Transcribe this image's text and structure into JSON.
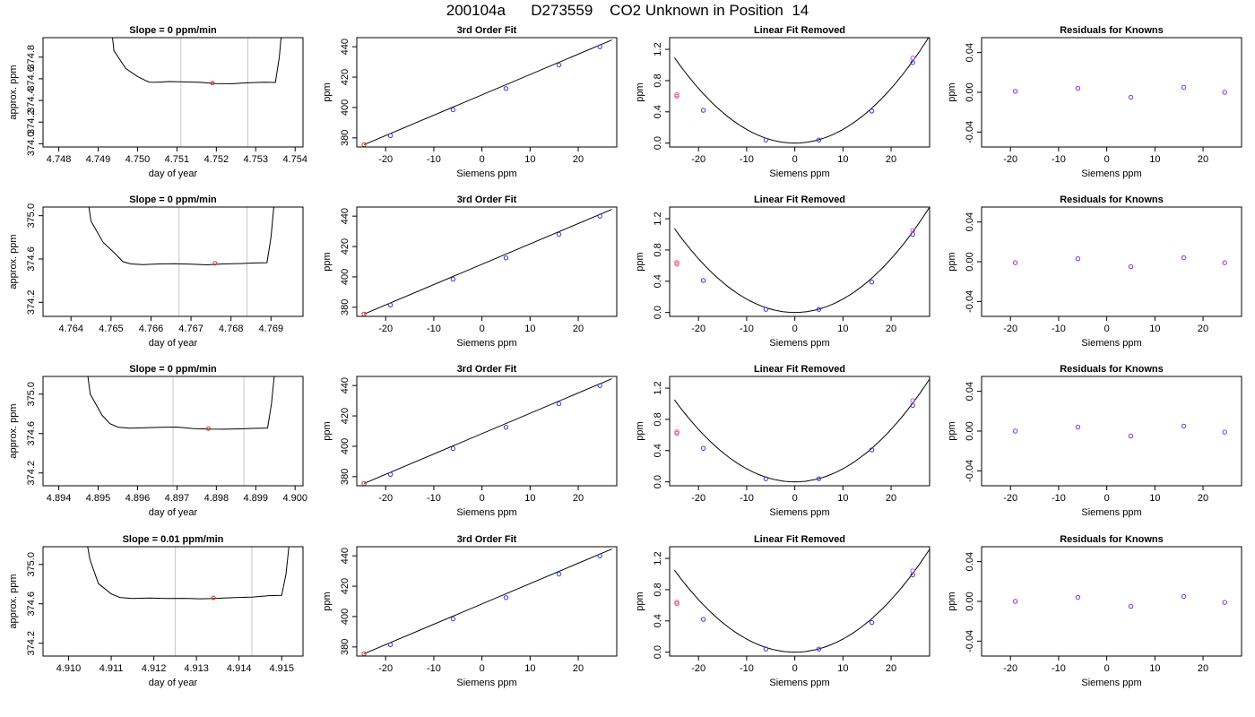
{
  "figure": {
    "title": "200104a      D273559    CO2 Unknown in Position  14"
  },
  "chart_data": [
    {
      "type": "line",
      "title": "Slope =  0  ppm/min",
      "xlabel": "day of year",
      "ylabel": "approx. ppm",
      "xlim": [
        4.7476,
        4.7542
      ],
      "ylim": [
        373.97,
        374.98
      ],
      "xticks": [
        "4.748",
        "4.749",
        "4.750",
        "4.751",
        "4.752",
        "4.753",
        "4.754"
      ],
      "yticks": [
        "374.0",
        "374.2",
        "374.4",
        "374.6",
        "374.8"
      ],
      "vlines": [
        4.7511,
        4.7528
      ],
      "trace": {
        "x": [
          4.7493,
          4.7494,
          4.7497,
          4.75,
          4.7502,
          4.7503,
          4.7505,
          4.7508,
          4.7512,
          4.7516,
          4.752,
          4.7524,
          4.7528,
          4.7532,
          4.7535,
          4.7536,
          4.7537
        ],
        "y": [
          375.2,
          374.86,
          374.69,
          374.62,
          374.59,
          374.575,
          374.57,
          374.57,
          374.565,
          374.565,
          374.56,
          374.56,
          374.565,
          374.565,
          374.56,
          374.8,
          375.2
        ]
      },
      "point": {
        "x": 4.7519,
        "y": 374.56
      }
    },
    {
      "type": "scatter",
      "title": "3rd Order Fit",
      "xlabel": "Siemens ppm",
      "ylabel": "ppm",
      "xlim": [
        -26,
        28
      ],
      "ylim": [
        374,
        446
      ],
      "xticks": [
        -20,
        -10,
        0,
        10,
        20
      ],
      "yticks": [
        380,
        400,
        420,
        440
      ],
      "points": {
        "x": [
          -24.5,
          -19,
          -6,
          5,
          16,
          24.5
        ],
        "y": [
          375.5,
          381.5,
          398.5,
          412.5,
          428,
          440
        ]
      },
      "fit_line": {
        "x": [
          -24.5,
          27
        ],
        "y": [
          375.5,
          444.5
        ]
      }
    },
    {
      "type": "scatter",
      "title": "Linear Fit Removed",
      "xlabel": "Siemens ppm",
      "ylabel": "ppm",
      "xlim": [
        -26,
        28
      ],
      "ylim": [
        -0.05,
        1.35
      ],
      "xticks": [
        -20,
        -10,
        0,
        10,
        20
      ],
      "yticks": [
        "0.0",
        "0.4",
        "0.8",
        "1.2"
      ],
      "points": {
        "x": [
          -24.5,
          -19,
          -6,
          5,
          16,
          24.5
        ],
        "y": [
          0.62,
          0.42,
          0.04,
          0.04,
          0.41,
          1.03
        ]
      },
      "points_alt": {
        "x": [
          -24.5,
          24.5
        ],
        "y": [
          0.6,
          1.09
        ]
      },
      "fit_curve": {
        "a": 0.00175
      }
    },
    {
      "type": "scatter",
      "title": "Residuals for Knowns",
      "xlabel": "Siemens ppm",
      "ylabel": "ppm",
      "xlim": [
        -26,
        28
      ],
      "ylim": [
        -0.055,
        0.055
      ],
      "xticks": [
        -20,
        -10,
        0,
        10,
        20
      ],
      "yticks": [
        "-0.04",
        "0.00",
        "0.04"
      ],
      "points": {
        "x": [
          -19,
          -6,
          5,
          16,
          24.5
        ],
        "y": [
          0.001,
          0.004,
          -0.005,
          0.005,
          0.0
        ]
      }
    },
    {
      "type": "line",
      "title": "Slope =  0  ppm/min",
      "xlabel": "day of year",
      "ylabel": "approx. ppm",
      "xlim": [
        4.7633,
        4.7698
      ],
      "ylim": [
        374.07,
        375.08
      ],
      "xticks": [
        "4.764",
        "4.765",
        "4.766",
        "4.767",
        "4.768",
        "4.769"
      ],
      "yticks": [
        "374.2",
        "374.6",
        "375.0"
      ],
      "vlines": [
        4.7667,
        4.7684
      ],
      "trace": {
        "x": [
          4.7644,
          4.7645,
          4.7648,
          4.7651,
          4.7653,
          4.7655,
          4.7658,
          4.7662,
          4.7666,
          4.767,
          4.7674,
          4.7678,
          4.7682,
          4.7686,
          4.7689,
          4.769,
          4.7691
        ],
        "y": [
          375.2,
          374.95,
          374.75,
          374.65,
          374.58,
          374.56,
          374.55,
          374.55,
          374.55,
          374.55,
          374.55,
          374.56,
          374.56,
          374.56,
          374.56,
          374.8,
          375.2
        ]
      },
      "point": {
        "x": 4.7676,
        "y": 374.56
      }
    },
    {
      "type": "scatter",
      "title": "3rd Order Fit",
      "xlabel": "Siemens ppm",
      "ylabel": "ppm",
      "xlim": [
        -26,
        28
      ],
      "ylim": [
        374,
        446
      ],
      "xticks": [
        -20,
        -10,
        0,
        10,
        20
      ],
      "yticks": [
        380,
        400,
        420,
        440
      ],
      "points": {
        "x": [
          -24.5,
          -19,
          -6,
          5,
          16,
          24.5
        ],
        "y": [
          375.5,
          381.5,
          398.5,
          412.5,
          428,
          440
        ]
      },
      "fit_line": {
        "x": [
          -24.5,
          27
        ],
        "y": [
          375.5,
          444.5
        ]
      }
    },
    {
      "type": "scatter",
      "title": "Linear Fit Removed",
      "xlabel": "Siemens ppm",
      "ylabel": "ppm",
      "xlim": [
        -26,
        28
      ],
      "ylim": [
        -0.05,
        1.35
      ],
      "xticks": [
        -20,
        -10,
        0,
        10,
        20
      ],
      "yticks": [
        "0.0",
        "0.4",
        "0.8",
        "1.2"
      ],
      "points": {
        "x": [
          -24.5,
          -19,
          -6,
          5,
          16,
          24.5
        ],
        "y": [
          0.64,
          0.41,
          0.04,
          0.04,
          0.39,
          1.0
        ]
      },
      "points_alt": {
        "x": [
          -24.5,
          24.5
        ],
        "y": [
          0.62,
          1.05
        ]
      },
      "fit_curve": {
        "a": 0.00172
      }
    },
    {
      "type": "scatter",
      "title": "Residuals for Knowns",
      "xlabel": "Siemens ppm",
      "ylabel": "ppm",
      "xlim": [
        -26,
        28
      ],
      "ylim": [
        -0.055,
        0.055
      ],
      "xticks": [
        -20,
        -10,
        0,
        10,
        20
      ],
      "yticks": [
        "-0.04",
        "0.00",
        "0.04"
      ],
      "points": {
        "x": [
          -19,
          -6,
          5,
          16,
          24.5
        ],
        "y": [
          -0.001,
          0.003,
          -0.005,
          0.004,
          -0.001
        ]
      }
    },
    {
      "type": "line",
      "title": "Slope =  0  ppm/min",
      "xlabel": "day of year",
      "ylabel": "approx. ppm",
      "xlim": [
        4.8936,
        4.9002
      ],
      "ylim": [
        374.07,
        375.18
      ],
      "xticks": [
        "4.894",
        "4.895",
        "4.896",
        "4.897",
        "4.898",
        "4.899",
        "4.900"
      ],
      "yticks": [
        "374.2",
        "374.6",
        "375.0"
      ],
      "vlines": [
        4.8969,
        4.8987
      ],
      "trace": {
        "x": [
          4.8947,
          4.8948,
          4.8951,
          4.8953,
          4.8955,
          4.8958,
          4.8962,
          4.8966,
          4.897,
          4.8974,
          4.8978,
          4.8982,
          4.8986,
          4.899,
          4.8993,
          4.8994,
          4.8995
        ],
        "y": [
          375.3,
          375.0,
          374.78,
          374.7,
          374.67,
          374.66,
          374.66,
          374.66,
          374.66,
          374.65,
          374.65,
          374.65,
          374.65,
          374.65,
          374.65,
          374.9,
          375.3
        ]
      },
      "point": {
        "x": 4.8978,
        "y": 374.65
      }
    },
    {
      "type": "scatter",
      "title": "3rd Order Fit",
      "xlabel": "Siemens ppm",
      "ylabel": "ppm",
      "xlim": [
        -26,
        28
      ],
      "ylim": [
        374,
        446
      ],
      "xticks": [
        -20,
        -10,
        0,
        10,
        20
      ],
      "yticks": [
        380,
        400,
        420,
        440
      ],
      "points": {
        "x": [
          -24.5,
          -19,
          -6,
          5,
          16,
          24.5
        ],
        "y": [
          375.5,
          381.5,
          398.5,
          412.5,
          428,
          440
        ]
      },
      "fit_line": {
        "x": [
          -24.5,
          27
        ],
        "y": [
          375.5,
          444.5
        ]
      }
    },
    {
      "type": "scatter",
      "title": "Linear Fit Removed",
      "xlabel": "Siemens ppm",
      "ylabel": "ppm",
      "xlim": [
        -26,
        28
      ],
      "ylim": [
        -0.05,
        1.35
      ],
      "xticks": [
        -20,
        -10,
        0,
        10,
        20
      ],
      "yticks": [
        "0.0",
        "0.4",
        "0.8",
        "1.2"
      ],
      "points": {
        "x": [
          -24.5,
          -19,
          -6,
          5,
          16,
          24.5
        ],
        "y": [
          0.64,
          0.43,
          0.04,
          0.04,
          0.41,
          0.98
        ]
      },
      "points_alt": {
        "x": [
          -24.5,
          24.5
        ],
        "y": [
          0.62,
          1.04
        ]
      },
      "fit_curve": {
        "a": 0.00168
      }
    },
    {
      "type": "scatter",
      "title": "Residuals for Knowns",
      "xlabel": "Siemens ppm",
      "ylabel": "ppm",
      "xlim": [
        -26,
        28
      ],
      "ylim": [
        -0.055,
        0.055
      ],
      "xticks": [
        -20,
        -10,
        0,
        10,
        20
      ],
      "yticks": [
        "-0.04",
        "0.00",
        "0.04"
      ],
      "points": {
        "x": [
          -19,
          -6,
          5,
          16,
          24.5
        ],
        "y": [
          0.0,
          0.004,
          -0.005,
          0.005,
          -0.001
        ]
      }
    },
    {
      "type": "line",
      "title": "Slope =  0.01  ppm/min",
      "xlabel": "day of year",
      "ylabel": "approx. ppm",
      "xlim": [
        4.9094,
        4.9155
      ],
      "ylim": [
        374.07,
        375.18
      ],
      "xticks": [
        "4.910",
        "4.911",
        "4.912",
        "4.913",
        "4.914",
        "4.915"
      ],
      "yticks": [
        "374.2",
        "374.6",
        "375.0"
      ],
      "vlines": [
        4.9125,
        4.9143
      ],
      "trace": {
        "x": [
          4.9104,
          4.9105,
          4.9107,
          4.911,
          4.9112,
          4.9115,
          4.9119,
          4.9123,
          4.9127,
          4.9131,
          4.9135,
          4.9139,
          4.9143,
          4.9147,
          4.915,
          4.9151,
          4.9152
        ],
        "y": [
          375.3,
          375.05,
          374.8,
          374.7,
          374.67,
          374.66,
          374.66,
          374.65,
          374.65,
          374.65,
          374.66,
          374.67,
          374.67,
          374.68,
          374.68,
          374.9,
          375.3
        ]
      },
      "point": {
        "x": 4.9134,
        "y": 374.66
      }
    },
    {
      "type": "scatter",
      "title": "3rd Order Fit",
      "xlabel": "Siemens ppm",
      "ylabel": "ppm",
      "xlim": [
        -26,
        28
      ],
      "ylim": [
        374,
        446
      ],
      "xticks": [
        -20,
        -10,
        0,
        10,
        20
      ],
      "yticks": [
        380,
        400,
        420,
        440
      ],
      "points": {
        "x": [
          -24.5,
          -19,
          -6,
          5,
          16,
          24.5
        ],
        "y": [
          375.5,
          381.5,
          398.5,
          412.5,
          428,
          440
        ]
      },
      "fit_line": {
        "x": [
          -24.5,
          27
        ],
        "y": [
          375.5,
          444.5
        ]
      }
    },
    {
      "type": "scatter",
      "title": "Linear Fit Removed",
      "xlabel": "Siemens ppm",
      "ylabel": "ppm",
      "xlim": [
        -26,
        28
      ],
      "ylim": [
        -0.05,
        1.35
      ],
      "xticks": [
        -20,
        -10,
        0,
        10,
        20
      ],
      "yticks": [
        "0.0",
        "0.4",
        "0.8",
        "1.2"
      ],
      "points": {
        "x": [
          -24.5,
          -19,
          -6,
          5,
          16,
          24.5
        ],
        "y": [
          0.64,
          0.42,
          0.04,
          0.04,
          0.38,
          0.99
        ]
      },
      "points_alt": {
        "x": [
          -24.5,
          24.5
        ],
        "y": [
          0.62,
          1.04
        ]
      },
      "fit_curve": {
        "a": 0.00168
      }
    },
    {
      "type": "scatter",
      "title": "Residuals for Knowns",
      "xlabel": "Siemens ppm",
      "ylabel": "ppm",
      "xlim": [
        -26,
        28
      ],
      "ylim": [
        -0.055,
        0.055
      ],
      "xticks": [
        -20,
        -10,
        0,
        10,
        20
      ],
      "yticks": [
        "-0.04",
        "0.00",
        "0.04"
      ],
      "points": {
        "x": [
          -19,
          -6,
          5,
          16,
          24.5
        ],
        "y": [
          0.0,
          0.004,
          -0.005,
          0.005,
          -0.001
        ]
      }
    }
  ]
}
